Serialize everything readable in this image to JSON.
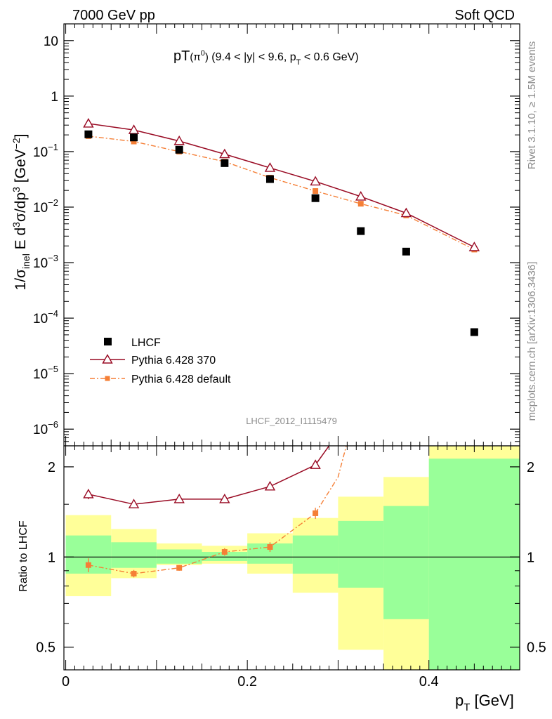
{
  "header": {
    "left": "7000 GeV pp",
    "right": "Soft QCD"
  },
  "side_text": {
    "rivet": "Rivet 3.1.10, ≥ 1.5M events",
    "mcplots": "mcplots.cern.ch [arXiv:1306.3436]"
  },
  "plot_title": "pT(π⁰) (9.4 < |y| < 9.6, pT < 0.6 GeV)",
  "analysis_label": "LHCF_2012_I1115479",
  "colors": {
    "lhcf": "#000000",
    "pythia_370": "#990a23",
    "pythia_default": "#f57f36",
    "band_inner": "#99ff99",
    "band_outer": "#ffff99"
  },
  "chart_data": [
    {
      "type": "scatter",
      "panel": "main",
      "title": "pT(π⁰) (9.4 < |y| < 9.6, pT < 0.6 GeV)",
      "ylabel": "1/σinel E d³σ/dp³ [GeV⁻²]",
      "xlabel": "pT [GeV]",
      "xlim": [
        -0.002,
        0.5
      ],
      "ylim": [
        5e-07,
        20
      ],
      "yscale": "log",
      "ytick_labels": [
        "10",
        "1",
        "10⁻¹",
        "10⁻²",
        "10⁻³",
        "10⁻⁴",
        "10⁻⁵",
        "10⁻⁶"
      ],
      "legend_position": "bottom-left",
      "series": [
        {
          "name": "LHCF",
          "x": [
            0.025,
            0.075,
            0.125,
            0.175,
            0.225,
            0.275,
            0.325,
            0.375,
            0.45
          ],
          "y": [
            0.205,
            0.18,
            0.108,
            0.062,
            0.032,
            0.0145,
            0.0037,
            0.00158,
            5.6e-05
          ]
        },
        {
          "name": "Pythia 6.428 370",
          "x": [
            0.025,
            0.075,
            0.125,
            0.175,
            0.225,
            0.275,
            0.325,
            0.375,
            0.45
          ],
          "y": [
            0.32,
            0.245,
            0.155,
            0.09,
            0.051,
            0.029,
            0.0155,
            0.0078,
            0.0019
          ]
        },
        {
          "name": "Pythia 6.428 default",
          "x": [
            0.025,
            0.075,
            0.125,
            0.175,
            0.225,
            0.275,
            0.325,
            0.375,
            0.45
          ],
          "y": [
            0.19,
            0.152,
            0.1,
            0.066,
            0.034,
            0.0195,
            0.0115,
            0.0071,
            0.00172
          ]
        }
      ]
    },
    {
      "type": "line",
      "panel": "ratio",
      "ylabel": "Ratio to LHCF",
      "xlabel": "pT [GeV]",
      "xlim": [
        -0.002,
        0.5
      ],
      "ylim": [
        0.42,
        2.35
      ],
      "yscale": "log",
      "yticks": [
        0.5,
        1,
        2
      ],
      "ytick_labels": [
        "0.5",
        "1",
        "2"
      ],
      "xticks": [
        0,
        0.2,
        0.4
      ],
      "xtick_labels": [
        "0",
        "0.2",
        "0.4"
      ],
      "reference_line": 1,
      "uncertainty_bands": [
        {
          "x0": 0.0,
          "x1": 0.05,
          "inner": [
            0.88,
            1.18
          ],
          "outer": [
            0.74,
            1.38
          ]
        },
        {
          "x0": 0.05,
          "x1": 0.1,
          "inner": [
            0.92,
            1.12
          ],
          "outer": [
            0.85,
            1.24
          ]
        },
        {
          "x0": 0.1,
          "x1": 0.15,
          "inner": [
            0.95,
            1.06
          ],
          "outer": [
            0.94,
            1.11
          ]
        },
        {
          "x0": 0.15,
          "x1": 0.2,
          "inner": [
            0.97,
            1.04
          ],
          "outer": [
            0.95,
            1.09
          ]
        },
        {
          "x0": 0.2,
          "x1": 0.25,
          "inner": [
            0.95,
            1.11
          ],
          "outer": [
            0.88,
            1.2
          ]
        },
        {
          "x0": 0.25,
          "x1": 0.3,
          "inner": [
            0.88,
            1.18
          ],
          "outer": [
            0.76,
            1.35
          ]
        },
        {
          "x0": 0.3,
          "x1": 0.35,
          "inner": [
            0.79,
            1.32
          ],
          "outer": [
            0.49,
            1.59
          ]
        },
        {
          "x0": 0.35,
          "x1": 0.4,
          "inner": [
            0.62,
            1.48
          ],
          "outer": [
            0.42,
            1.85
          ]
        },
        {
          "x0": 0.4,
          "x1": 0.5,
          "inner": [
            0.42,
            2.13
          ],
          "outer": [
            0.42,
            2.35
          ]
        }
      ],
      "series": [
        {
          "name": "Pythia 6.428 370",
          "x": [
            0.025,
            0.075,
            0.125,
            0.175,
            0.225,
            0.275,
            0.29
          ],
          "y": [
            1.62,
            1.5,
            1.56,
            1.56,
            1.72,
            2.03,
            2.35
          ],
          "yerr": [
            0.06,
            0.02,
            0.02,
            0.02,
            0.02,
            0.02,
            0
          ]
        },
        {
          "name": "Pythia 6.428 default",
          "x": [
            0.025,
            0.075,
            0.125,
            0.175,
            0.225,
            0.275,
            0.3,
            0.309
          ],
          "y": [
            0.94,
            0.88,
            0.92,
            1.04,
            1.08,
            1.4,
            1.85,
            2.35
          ],
          "yerr": [
            0.05,
            0.025,
            0.02,
            0.03,
            0.04,
            0.06,
            0,
            0
          ]
        }
      ]
    }
  ]
}
